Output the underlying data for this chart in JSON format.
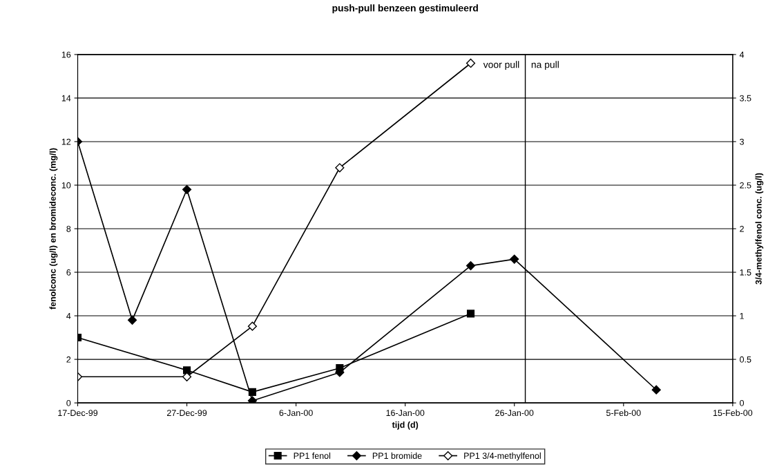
{
  "chart_data": {
    "type": "line",
    "title": "push-pull benzeen gestimuleerd",
    "xlabel": "tijd (d)",
    "ylabel": "fenolconc (ug/l) en bromideconc. (mg/l)",
    "y2label": "3/4-methylfenol conc. (ug/l)",
    "xlim": [
      "1999-12-17",
      "2000-02-15"
    ],
    "xticks": [
      {
        "value": "1999-12-17",
        "label": "17-Dec-99"
      },
      {
        "value": "1999-12-27",
        "label": "27-Dec-99"
      },
      {
        "value": "2000-01-06",
        "label": "6-Jan-00"
      },
      {
        "value": "2000-01-16",
        "label": "16-Jan-00"
      },
      {
        "value": "2000-01-26",
        "label": "26-Jan-00"
      },
      {
        "value": "2000-02-05",
        "label": "5-Feb-00"
      },
      {
        "value": "2000-02-15",
        "label": "15-Feb-00"
      }
    ],
    "ylim": [
      0,
      16
    ],
    "yticks": [
      0,
      2,
      4,
      6,
      8,
      10,
      12,
      14,
      16
    ],
    "y2lim": [
      0,
      4
    ],
    "y2ticks": [
      0,
      0.5,
      1,
      1.5,
      2,
      2.5,
      3,
      3.5,
      4
    ],
    "grid": "y",
    "legend": "bottom",
    "series": [
      {
        "name": "PP1 fenol",
        "color": "#000000",
        "marker": "square",
        "x": [
          "1999-12-17",
          "1999-12-27",
          "2000-01-02",
          "2000-01-10",
          "2000-01-22"
        ],
        "values": [
          3.0,
          1.5,
          0.5,
          1.6,
          4.1
        ]
      },
      {
        "name": "PP1 bromide",
        "color": "#000000",
        "marker": "diamond",
        "x": [
          "1999-12-17",
          "1999-12-22",
          "1999-12-27",
          "2000-01-02",
          "2000-01-10",
          "2000-01-22",
          "2000-01-26",
          "2000-02-08"
        ],
        "values": [
          12,
          3.8,
          9.8,
          0.1,
          1.4,
          6.3,
          6.6,
          0.6
        ]
      },
      {
        "name": "PP1 3/4-methylfenol",
        "color": "#ffffff",
        "marker": "diamond",
        "axis": "y2",
        "x": [
          "1999-12-17",
          "1999-12-27",
          "2000-01-02",
          "2000-01-10",
          "2000-01-22"
        ],
        "values": [
          0.3,
          0.3,
          0.88,
          2.7,
          3.9
        ]
      }
    ],
    "ref_lines": [
      {
        "axis": "x",
        "value": "2000-01-27",
        "color": "#000000"
      }
    ],
    "annotations": [
      {
        "text": "voor pull",
        "x": "2000-01-27",
        "y": 15.5
      },
      {
        "text": "na pull",
        "x": "2000-01-27",
        "y": 15.5
      }
    ]
  }
}
